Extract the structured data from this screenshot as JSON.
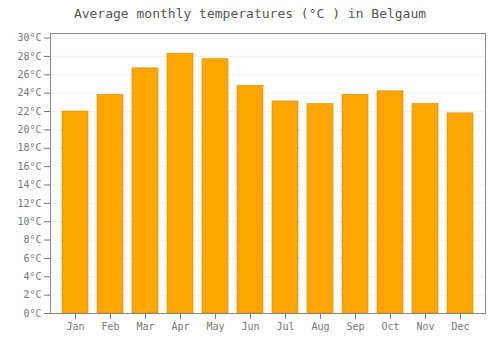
{
  "chart_data": {
    "type": "bar",
    "title": "Average monthly temperatures (°C ) in Belgaum",
    "categories": [
      "Jan",
      "Feb",
      "Mar",
      "Apr",
      "May",
      "Jun",
      "Jul",
      "Aug",
      "Sep",
      "Oct",
      "Nov",
      "Dec"
    ],
    "values": [
      22.0,
      23.8,
      26.7,
      28.3,
      27.7,
      24.8,
      23.1,
      22.8,
      23.8,
      24.2,
      22.8,
      21.8
    ],
    "color": "#FFA500",
    "ylim": [
      0,
      30.5
    ],
    "yticks": [
      {
        "value": 0,
        "label": "0°C"
      },
      {
        "value": 2,
        "label": "2°C"
      },
      {
        "value": 4,
        "label": "4°C"
      },
      {
        "value": 6,
        "label": "6°C"
      },
      {
        "value": 8,
        "label": "8°C"
      },
      {
        "value": 10,
        "label": "10°C"
      },
      {
        "value": 12,
        "label": "12°C"
      },
      {
        "value": 14,
        "label": "14°C"
      },
      {
        "value": 16,
        "label": "16°C"
      },
      {
        "value": 18,
        "label": "18°C"
      },
      {
        "value": 20,
        "label": "20°C"
      },
      {
        "value": 22,
        "label": "22°C"
      },
      {
        "value": 24,
        "label": "24°C"
      },
      {
        "value": 26,
        "label": "26°C"
      },
      {
        "value": 28,
        "label": "28°C"
      },
      {
        "value": 30,
        "label": "30°C"
      }
    ],
    "grid": true
  }
}
